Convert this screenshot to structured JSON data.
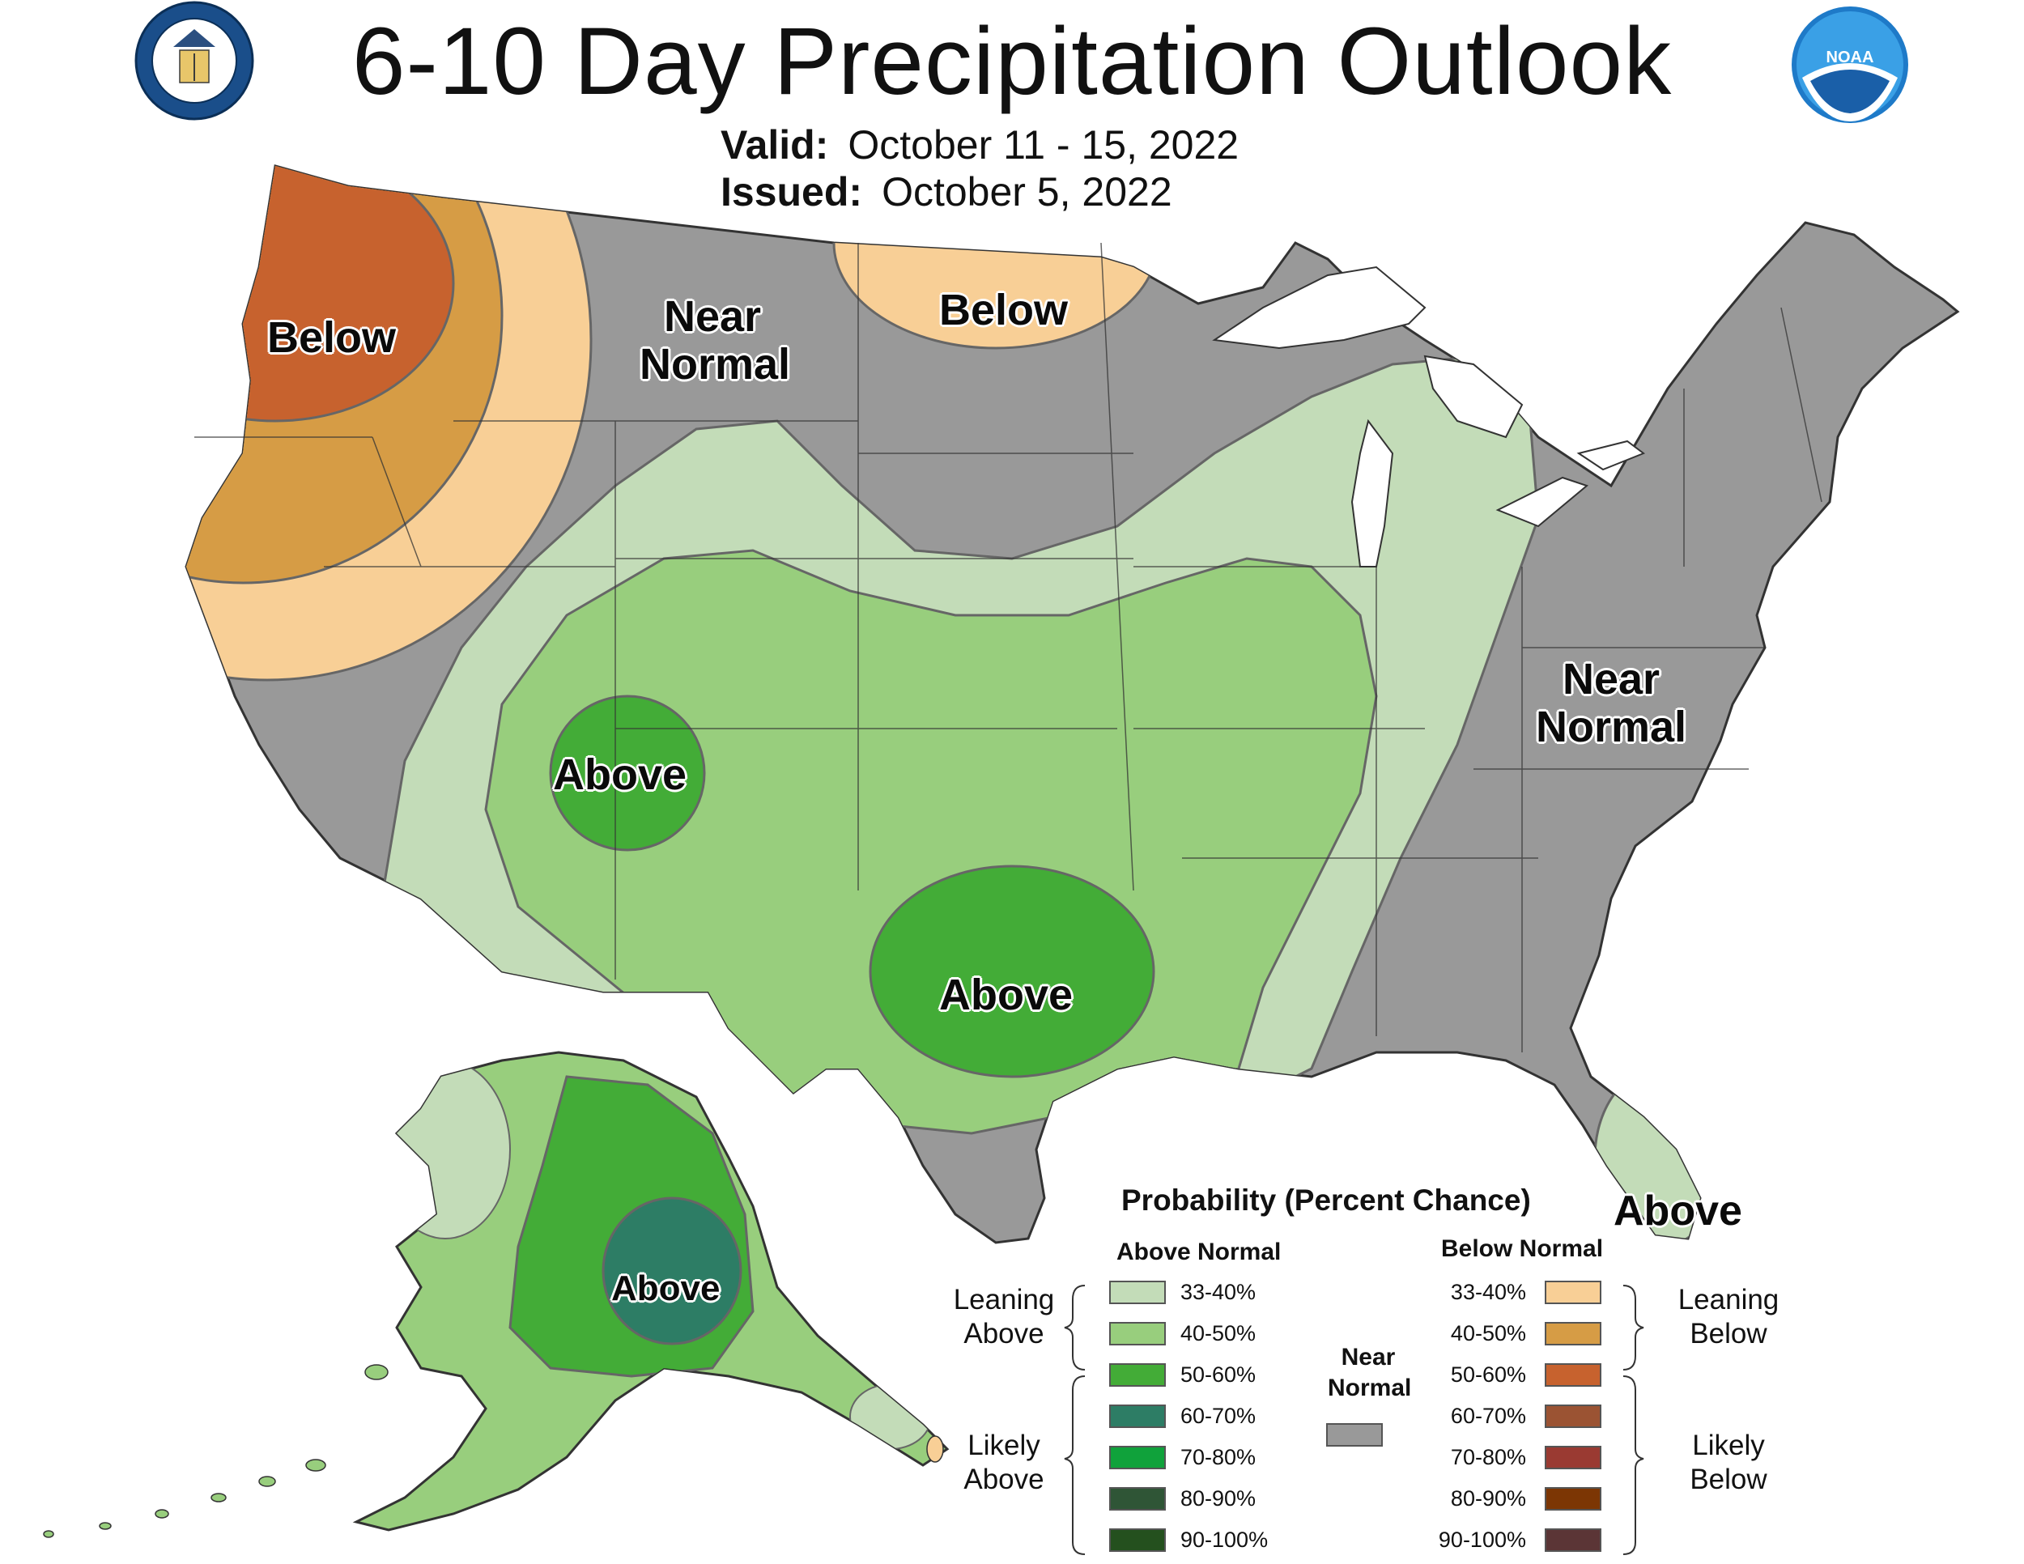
{
  "title": "6-10 Day Precipitation Outlook",
  "valid_label": "Valid:",
  "valid_value": "October 11 - 15, 2022",
  "issued_label": "Issued:",
  "issued_value": "October 5, 2022",
  "map_labels": {
    "below": "Below",
    "near": "Near",
    "normal": "Normal",
    "above": "Above"
  },
  "legend": {
    "title": "Probability (Percent Chance)",
    "above_normal": "Above Normal",
    "below_normal": "Below Normal",
    "near_normal_1": "Near",
    "near_normal_2": "Normal",
    "leaning": "Leaning",
    "likely": "Likely",
    "above_word": "Above",
    "below_word": "Below",
    "bins": [
      "33-40%",
      "40-50%",
      "50-60%",
      "60-70%",
      "70-80%",
      "80-90%",
      "90-100%"
    ],
    "above_colors": [
      "#c3dcb8",
      "#98ce7d",
      "#43ac37",
      "#2d7d65",
      "#10a23b",
      "#2f5536",
      "#24501e"
    ],
    "below_colors": [
      "#f8cf96",
      "#d69c45",
      "#c7622e",
      "#9b5333",
      "#9a3a32",
      "#7c3604",
      "#5b3536"
    ],
    "near_color": "#999999"
  },
  "logos": {
    "commerce_icon": "department-of-commerce-seal",
    "noaa_icon": "noaa-logo",
    "noaa_text": "NOAA"
  }
}
